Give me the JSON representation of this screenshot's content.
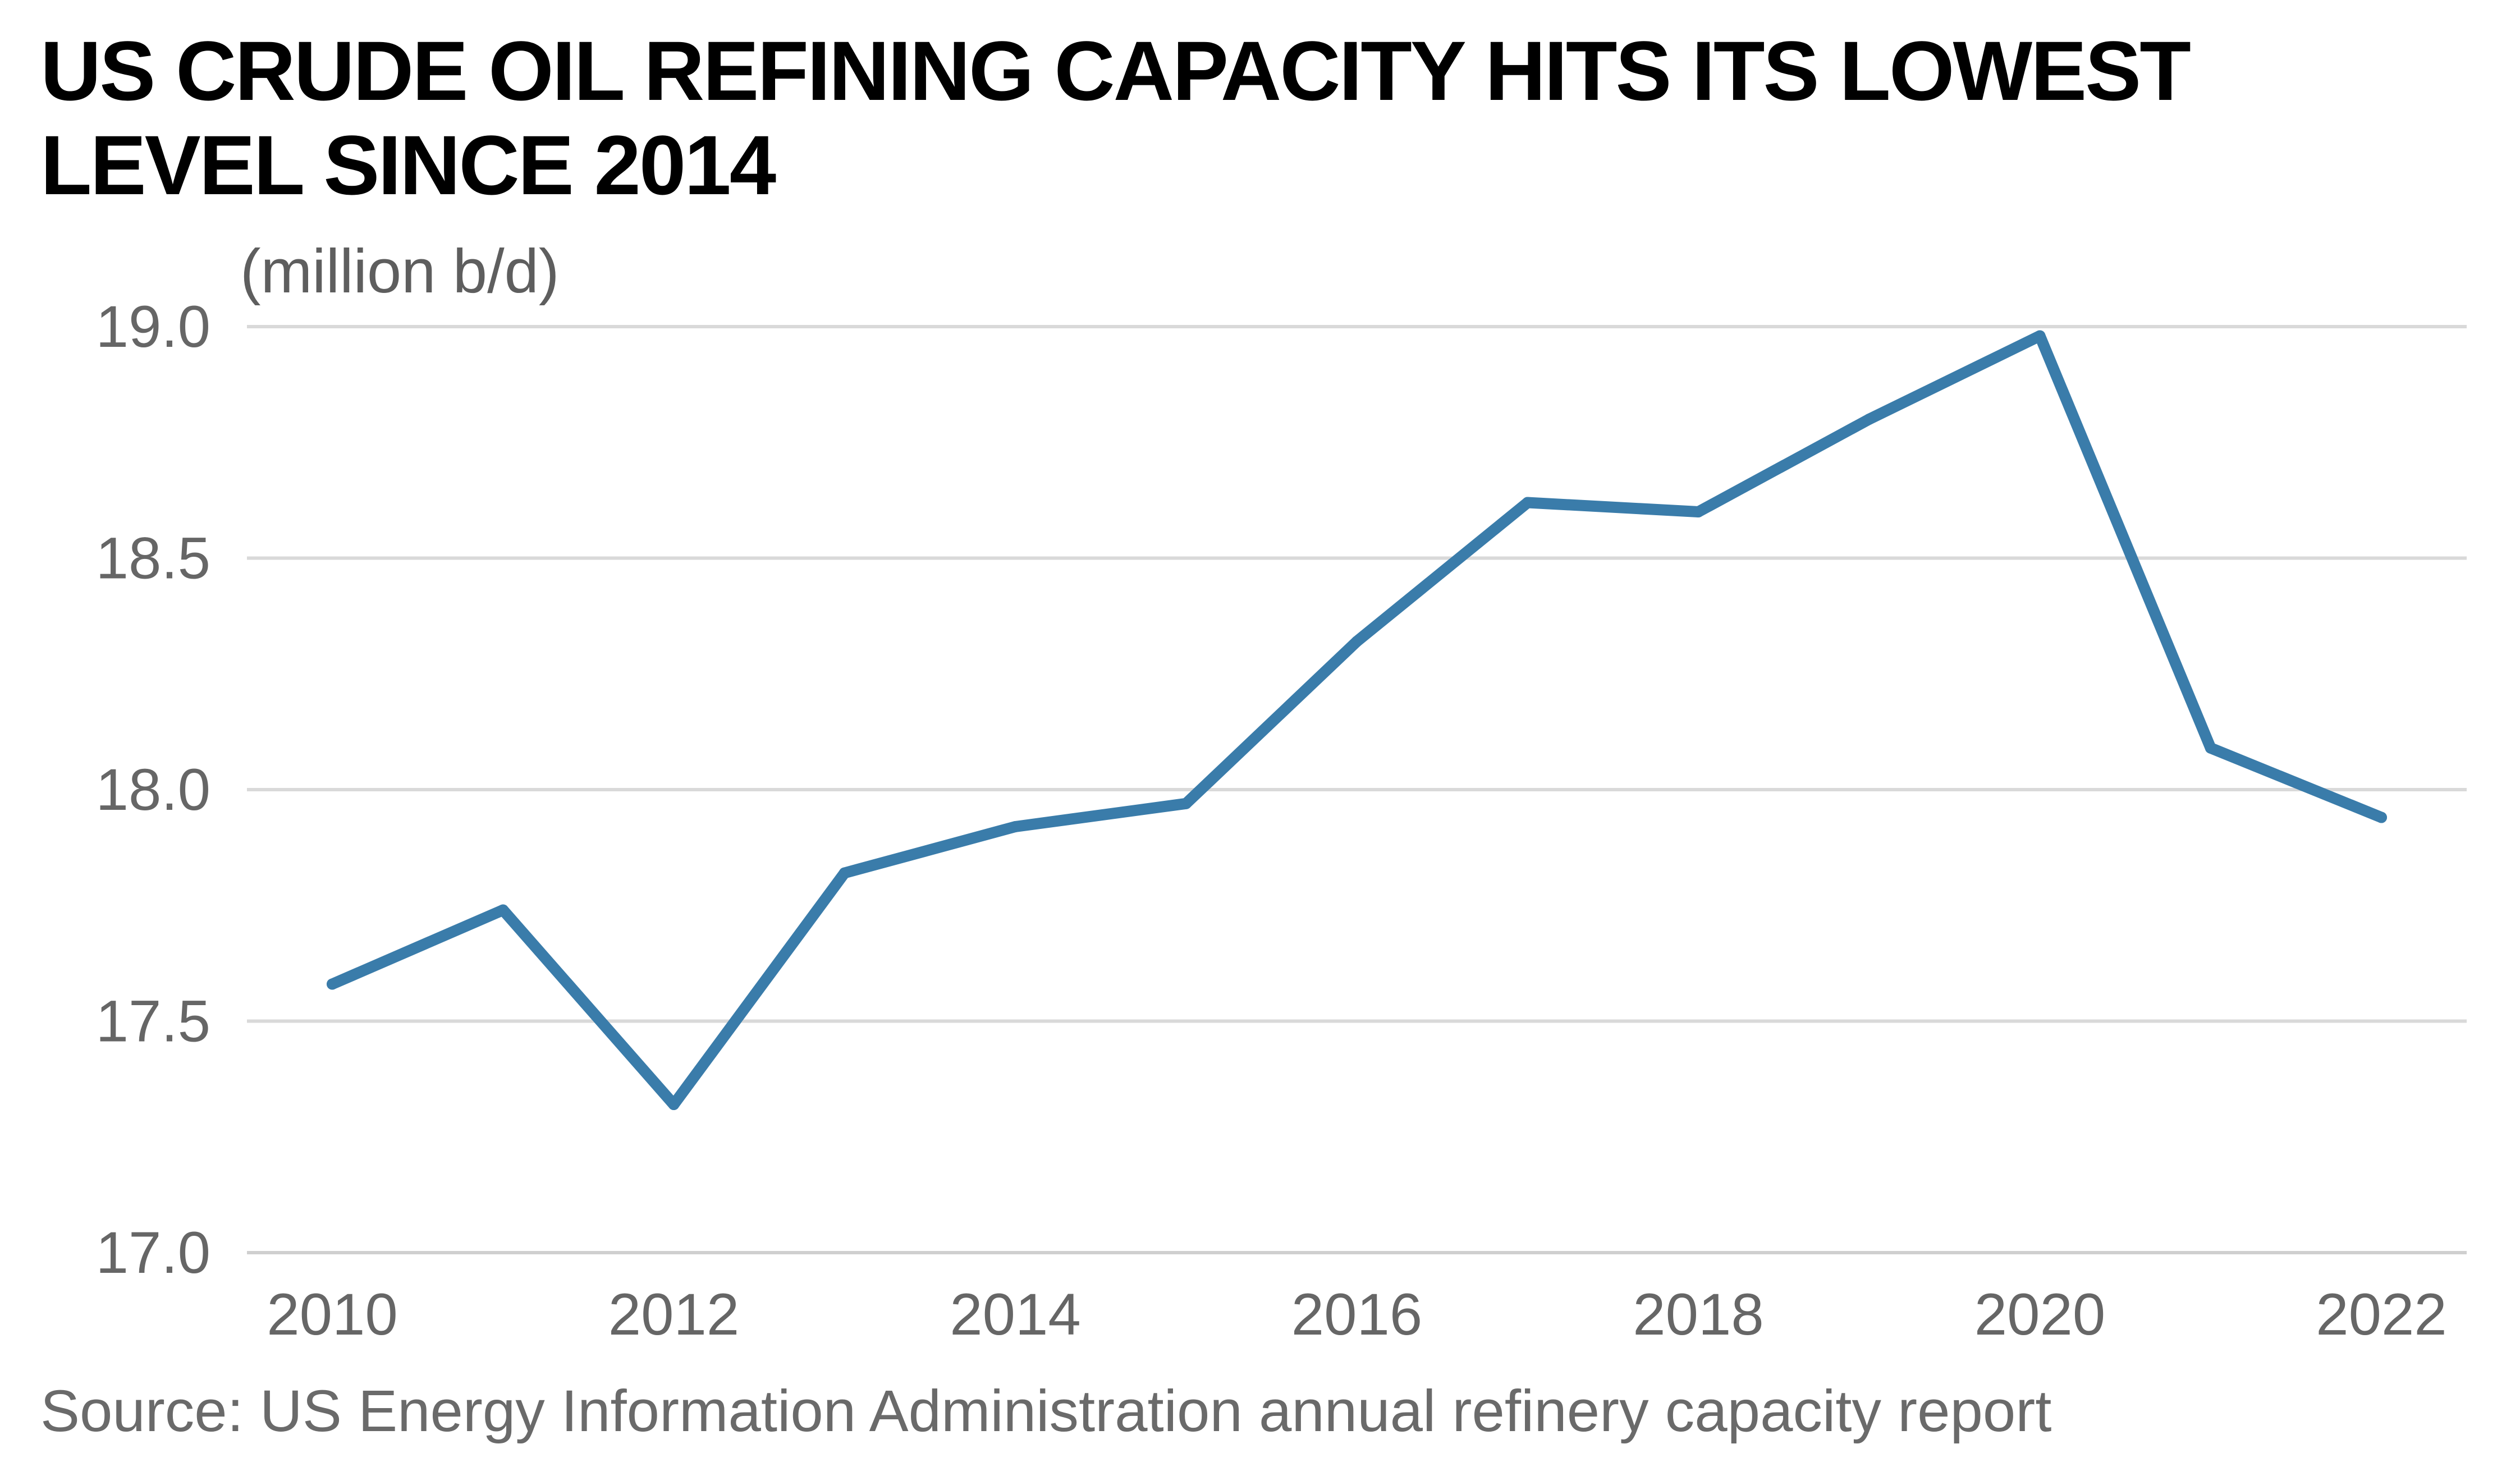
{
  "title": "US CRUDE OIL REFINING CAPACITY HITS ITS LOWEST LEVEL SINCE 2014",
  "unit_label": "(million b/d)",
  "source": "Source: US Energy Information Administration annual refinery capacity report",
  "colors": {
    "line": "#3a7caa",
    "grid": "#d9d9d9",
    "title": "#000000",
    "axis_text": "#666666"
  },
  "chart_data": {
    "type": "line",
    "title": "US CRUDE OIL REFINING CAPACITY HITS ITS LOWEST LEVEL SINCE 2014",
    "ylabel": "(million b/d)",
    "xlabel": "",
    "x": [
      2010,
      2011,
      2012,
      2013,
      2014,
      2015,
      2016,
      2017,
      2018,
      2019,
      2020,
      2021,
      2022
    ],
    "series": [
      {
        "values": [
          17.58,
          17.74,
          17.32,
          17.82,
          17.92,
          17.97,
          18.32,
          18.62,
          18.6,
          18.8,
          18.98,
          18.09,
          17.94
        ]
      }
    ],
    "ylim": [
      17.0,
      19.0
    ],
    "xlim": [
      2010,
      2022
    ],
    "yticks": [
      "17.0",
      "17.5",
      "18.0",
      "18.5",
      "19.0"
    ],
    "xticks": [
      "2010",
      "2012",
      "2014",
      "2016",
      "2018",
      "2020",
      "2022"
    ],
    "grid": true,
    "legend": "none"
  }
}
